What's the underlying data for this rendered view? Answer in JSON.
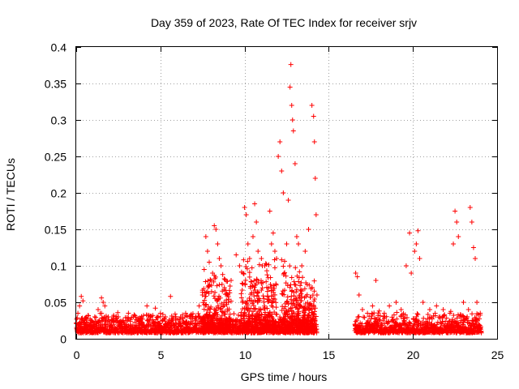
{
  "chart_data": {
    "type": "scatter",
    "title": "Day 359 of 2023, Rate Of TEC Index for receiver srjv",
    "xlabel": "GPS time / hours",
    "ylabel": "ROTI / TECUs",
    "xlim": [
      0,
      25
    ],
    "ylim": [
      0,
      0.4
    ],
    "xticks": [
      0,
      5,
      10,
      15,
      20,
      25
    ],
    "yticks": [
      0,
      0.05,
      0.1,
      0.15,
      0.2,
      0.25,
      0.3,
      0.35,
      0.4
    ],
    "xtick_labels": [
      "0",
      "5",
      "10",
      "15",
      "20",
      "25"
    ],
    "ytick_labels": [
      "0",
      "0.05",
      "0.1",
      "0.15",
      "0.2",
      "0.25",
      "0.3",
      "0.35",
      "0.4"
    ],
    "grid": true,
    "marker": "+",
    "color": "#ff0000",
    "series": [
      {
        "points": [
          [
            0.0,
            0.021
          ],
          [
            0.1,
            0.035
          ],
          [
            0.2,
            0.045
          ],
          [
            0.3,
            0.058
          ],
          [
            0.4,
            0.052
          ],
          [
            0.5,
            0.028
          ],
          [
            0.7,
            0.032
          ],
          [
            0.9,
            0.025
          ],
          [
            1.1,
            0.03
          ],
          [
            1.3,
            0.04
          ],
          [
            1.5,
            0.056
          ],
          [
            1.6,
            0.05
          ],
          [
            1.7,
            0.045
          ],
          [
            1.9,
            0.03
          ],
          [
            2.2,
            0.028
          ],
          [
            2.5,
            0.03
          ],
          [
            2.8,
            0.025
          ],
          [
            3.1,
            0.035
          ],
          [
            3.4,
            0.03
          ],
          [
            3.7,
            0.028
          ],
          [
            4.0,
            0.032
          ],
          [
            4.2,
            0.045
          ],
          [
            4.4,
            0.03
          ],
          [
            4.7,
            0.042
          ],
          [
            5.0,
            0.035
          ],
          [
            5.3,
            0.03
          ],
          [
            5.6,
            0.058
          ],
          [
            5.9,
            0.028
          ],
          [
            6.2,
            0.03
          ],
          [
            6.5,
            0.035
          ],
          [
            6.8,
            0.028
          ],
          [
            7.1,
            0.03
          ],
          [
            7.3,
            0.045
          ],
          [
            7.5,
            0.06
          ],
          [
            7.6,
            0.095
          ],
          [
            7.7,
            0.14
          ],
          [
            7.8,
            0.12
          ],
          [
            7.9,
            0.105
          ],
          [
            8.0,
            0.08
          ],
          [
            8.1,
            0.09
          ],
          [
            8.2,
            0.155
          ],
          [
            8.3,
            0.15
          ],
          [
            8.4,
            0.13
          ],
          [
            8.5,
            0.11
          ],
          [
            8.6,
            0.1
          ],
          [
            8.7,
            0.088
          ],
          [
            8.8,
            0.07
          ],
          [
            9.0,
            0.06
          ],
          [
            9.2,
            0.08
          ],
          [
            9.5,
            0.115
          ],
          [
            9.7,
            0.1
          ],
          [
            9.9,
            0.075
          ],
          [
            10.0,
            0.18
          ],
          [
            10.1,
            0.17
          ],
          [
            10.2,
            0.13
          ],
          [
            10.3,
            0.11
          ],
          [
            10.5,
            0.14
          ],
          [
            10.6,
            0.185
          ],
          [
            10.7,
            0.16
          ],
          [
            10.8,
            0.12
          ],
          [
            11.0,
            0.11
          ],
          [
            11.2,
            0.1
          ],
          [
            11.5,
            0.175
          ],
          [
            11.6,
            0.13
          ],
          [
            11.7,
            0.145
          ],
          [
            11.8,
            0.12
          ],
          [
            11.9,
            0.11
          ],
          [
            12.0,
            0.25
          ],
          [
            12.1,
            0.27
          ],
          [
            12.2,
            0.23
          ],
          [
            12.3,
            0.2
          ],
          [
            12.5,
            0.13
          ],
          [
            12.6,
            0.19
          ],
          [
            12.7,
            0.345
          ],
          [
            12.75,
            0.376
          ],
          [
            12.8,
            0.32
          ],
          [
            12.85,
            0.3
          ],
          [
            12.9,
            0.285
          ],
          [
            13.0,
            0.24
          ],
          [
            13.1,
            0.14
          ],
          [
            13.2,
            0.13
          ],
          [
            13.4,
            0.1
          ],
          [
            13.6,
            0.12
          ],
          [
            13.8,
            0.15
          ],
          [
            14.0,
            0.32
          ],
          [
            14.1,
            0.305
          ],
          [
            14.15,
            0.27
          ],
          [
            14.2,
            0.22
          ],
          [
            14.25,
            0.17
          ],
          [
            14.3,
            0.06
          ],
          [
            16.6,
            0.09
          ],
          [
            16.7,
            0.085
          ],
          [
            16.8,
            0.06
          ],
          [
            17.0,
            0.04
          ],
          [
            17.3,
            0.035
          ],
          [
            17.6,
            0.045
          ],
          [
            17.8,
            0.08
          ],
          [
            18.0,
            0.038
          ],
          [
            18.3,
            0.035
          ],
          [
            18.6,
            0.045
          ],
          [
            19.0,
            0.05
          ],
          [
            19.3,
            0.04
          ],
          [
            19.6,
            0.1
          ],
          [
            19.8,
            0.145
          ],
          [
            19.9,
            0.09
          ],
          [
            20.1,
            0.12
          ],
          [
            20.2,
            0.13
          ],
          [
            20.3,
            0.148
          ],
          [
            20.4,
            0.11
          ],
          [
            20.6,
            0.05
          ],
          [
            21.0,
            0.04
          ],
          [
            21.4,
            0.045
          ],
          [
            21.8,
            0.04
          ],
          [
            22.2,
            0.035
          ],
          [
            22.4,
            0.13
          ],
          [
            22.5,
            0.175
          ],
          [
            22.6,
            0.16
          ],
          [
            22.7,
            0.14
          ],
          [
            23.0,
            0.05
          ],
          [
            23.3,
            0.04
          ],
          [
            23.4,
            0.18
          ],
          [
            23.5,
            0.16
          ],
          [
            23.6,
            0.125
          ],
          [
            23.7,
            0.11
          ],
          [
            23.8,
            0.05
          ],
          [
            24.0,
            0.035
          ]
        ]
      }
    ]
  }
}
